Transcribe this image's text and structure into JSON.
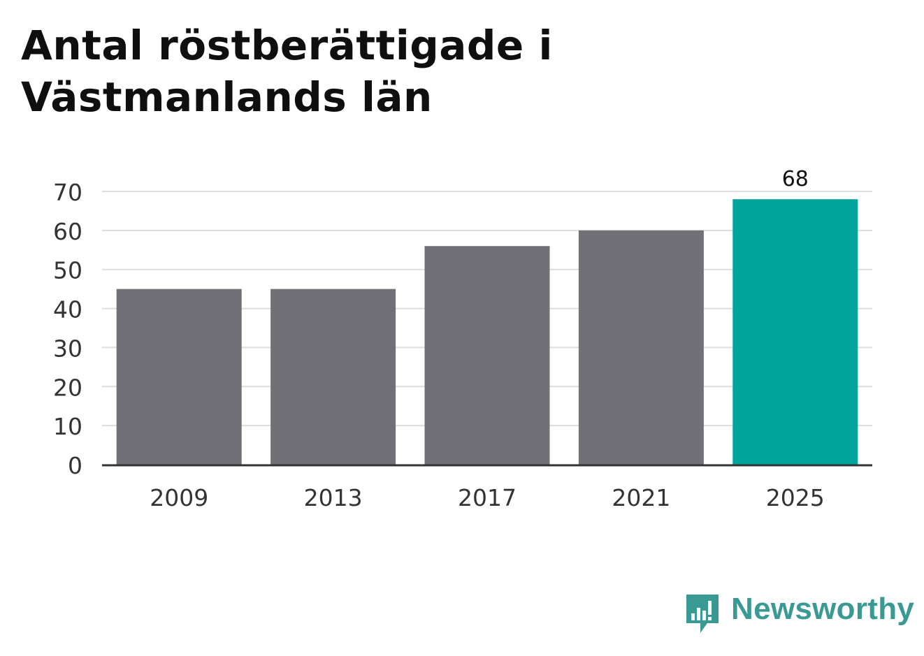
{
  "title": "Antal röstberättigade i Västmanlands län",
  "logo": {
    "text": "Newsworthy",
    "icon": "newsworthy-chart-bubble-icon",
    "color": "#3a9a93"
  },
  "colors": {
    "bar_default": "#717076",
    "bar_highlight": "#00a49a",
    "grid": "#dcdcdc",
    "axis": "#333333",
    "tick_text": "#333333"
  },
  "chart_data": {
    "type": "bar",
    "categories": [
      "2009",
      "2013",
      "2017",
      "2021",
      "2025"
    ],
    "values": [
      45,
      45,
      56,
      60,
      68
    ],
    "highlight_index": 4,
    "data_labels": [
      null,
      null,
      null,
      null,
      "68"
    ],
    "ylim": [
      0,
      70
    ],
    "yticks": [
      0,
      10,
      20,
      30,
      40,
      50,
      60,
      70
    ],
    "grid": true,
    "xlabel": "",
    "ylabel": ""
  }
}
